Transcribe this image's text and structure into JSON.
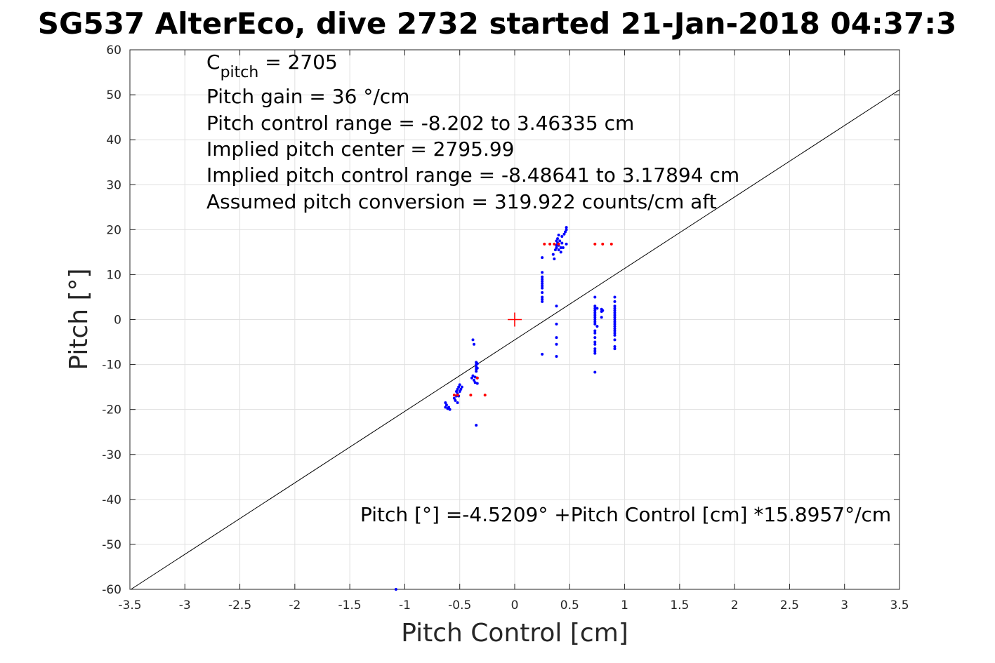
{
  "chart_data": {
    "type": "scatter",
    "title": "SG537 AlterEco, dive 2732 started 21-Jan-2018 04:37:3",
    "xlabel": "Pitch Control [cm]",
    "ylabel": "Pitch [°]",
    "xlim": [
      -3.5,
      3.5
    ],
    "ylim": [
      -60,
      60
    ],
    "xticks": [
      "-3.5",
      "-3",
      "-2.5",
      "-2",
      "-1.5",
      "-1",
      "-0.5",
      "0",
      "0.5",
      "1",
      "1.5",
      "2",
      "2.5",
      "3",
      "3.5"
    ],
    "yticks": [
      "60",
      "50",
      "40",
      "30",
      "20",
      "10",
      "0",
      "-10",
      "-20",
      "-30",
      "-40",
      "-50",
      "-60"
    ],
    "grid": true,
    "annotations": [
      {
        "main": "C",
        "sub": "pitch",
        "rest": " = 2705"
      },
      {
        "text": "Pitch gain = 36 °/cm"
      },
      {
        "text": "Pitch control range = -8.202 to 3.46335 cm"
      },
      {
        "text": "Implied pitch center = 2795.99"
      },
      {
        "text": "Implied pitch control range = -8.48641 to 3.17894 cm"
      },
      {
        "text": "Assumed pitch conversion = 319.922 counts/cm aft"
      }
    ],
    "fit_label": "Pitch [°] =-4.5209° +Pitch Control [cm] *15.8957°/cm",
    "colors": {
      "observed": "#0000ff",
      "red_points": "#ff0000",
      "fit": "#000000",
      "center": "#ff0000",
      "grid": "#e0e0e0"
    },
    "series": [
      {
        "marker": "dot",
        "color": "#0000ff",
        "points": [
          [
            -1.08,
            -60
          ],
          [
            -0.63,
            -18.5
          ],
          [
            -0.63,
            -19.5
          ],
          [
            -0.62,
            -19
          ],
          [
            -0.61,
            -19.8
          ],
          [
            -0.6,
            -19.5
          ],
          [
            -0.59,
            -20
          ],
          [
            -0.55,
            -17.5
          ],
          [
            -0.54,
            -18
          ],
          [
            -0.53,
            -16
          ],
          [
            -0.53,
            -17
          ],
          [
            -0.52,
            -15.5
          ],
          [
            -0.52,
            -16.5
          ],
          [
            -0.51,
            -17
          ],
          [
            -0.51,
            -15
          ],
          [
            -0.5,
            -14.5
          ],
          [
            -0.5,
            -16
          ],
          [
            -0.49,
            -15.5
          ],
          [
            -0.48,
            -15
          ],
          [
            -0.52,
            -18.5
          ],
          [
            -0.39,
            -13
          ],
          [
            -0.38,
            -12.5
          ],
          [
            -0.38,
            -4.5
          ],
          [
            -0.37,
            -5.5
          ],
          [
            -0.37,
            -13.5
          ],
          [
            -0.36,
            -12.8
          ],
          [
            -0.36,
            -14
          ],
          [
            -0.35,
            -9.5
          ],
          [
            -0.35,
            -10
          ],
          [
            -0.35,
            -10.5
          ],
          [
            -0.35,
            -11
          ],
          [
            -0.35,
            -11.5
          ],
          [
            -0.34,
            -9.8
          ],
          [
            -0.34,
            -10.8
          ],
          [
            -0.34,
            -13
          ],
          [
            -0.34,
            -14.2
          ],
          [
            -0.35,
            -23.5
          ],
          [
            0.25,
            13.8
          ],
          [
            0.25,
            10.5
          ],
          [
            0.25,
            9.5
          ],
          [
            0.25,
            9
          ],
          [
            0.25,
            8.5
          ],
          [
            0.25,
            8
          ],
          [
            0.25,
            7.5
          ],
          [
            0.25,
            7
          ],
          [
            0.25,
            6
          ],
          [
            0.25,
            5
          ],
          [
            0.25,
            4.5
          ],
          [
            0.25,
            4
          ],
          [
            0.25,
            -7.7
          ],
          [
            0.35,
            14.5
          ],
          [
            0.36,
            13.5
          ],
          [
            0.37,
            15.5
          ],
          [
            0.38,
            16
          ],
          [
            0.38,
            16.5
          ],
          [
            0.39,
            17
          ],
          [
            0.39,
            18
          ],
          [
            0.4,
            15.5
          ],
          [
            0.4,
            16.5
          ],
          [
            0.41,
            17.5
          ],
          [
            0.42,
            16
          ],
          [
            0.42,
            15
          ],
          [
            0.43,
            17
          ],
          [
            0.43,
            18.5
          ],
          [
            0.44,
            16
          ],
          [
            0.45,
            19
          ],
          [
            0.46,
            19.5
          ],
          [
            0.47,
            20
          ],
          [
            0.47,
            20.5
          ],
          [
            0.47,
            16.8
          ],
          [
            0.4,
            18.8
          ],
          [
            0.38,
            17.5
          ],
          [
            0.38,
            3
          ],
          [
            0.38,
            -1
          ],
          [
            0.38,
            -4
          ],
          [
            0.38,
            -5.5
          ],
          [
            0.38,
            -8.2
          ],
          [
            0.73,
            5
          ],
          [
            0.73,
            3
          ],
          [
            0.73,
            2.5
          ],
          [
            0.73,
            2
          ],
          [
            0.73,
            1.5
          ],
          [
            0.73,
            1
          ],
          [
            0.73,
            0.5
          ],
          [
            0.73,
            0
          ],
          [
            0.73,
            -0.5
          ],
          [
            0.73,
            -1
          ],
          [
            0.73,
            -2.5
          ],
          [
            0.73,
            -3
          ],
          [
            0.73,
            -4
          ],
          [
            0.73,
            -5
          ],
          [
            0.73,
            -5.5
          ],
          [
            0.73,
            -6.5
          ],
          [
            0.73,
            -7
          ],
          [
            0.73,
            -7.5
          ],
          [
            0.73,
            -11.7
          ],
          [
            0.75,
            2.5
          ],
          [
            0.75,
            -1.5
          ],
          [
            0.79,
            2.3
          ],
          [
            0.79,
            1.8
          ],
          [
            0.8,
            2
          ],
          [
            0.79,
            0.5
          ],
          [
            0.91,
            5
          ],
          [
            0.91,
            4
          ],
          [
            0.91,
            3
          ],
          [
            0.91,
            2.5
          ],
          [
            0.91,
            2
          ],
          [
            0.91,
            1.5
          ],
          [
            0.91,
            1
          ],
          [
            0.91,
            0.5
          ],
          [
            0.91,
            0
          ],
          [
            0.91,
            -0.5
          ],
          [
            0.91,
            -1
          ],
          [
            0.91,
            -1.5
          ],
          [
            0.91,
            -2
          ],
          [
            0.91,
            -2.5
          ],
          [
            0.91,
            -3
          ],
          [
            0.91,
            -3.5
          ],
          [
            0.91,
            -4.5
          ],
          [
            0.91,
            -6
          ],
          [
            0.91,
            -6.5
          ]
        ]
      },
      {
        "marker": "dot",
        "color": "#ff0000",
        "points": [
          [
            -0.55,
            -16.8
          ],
          [
            -0.52,
            -16.8
          ],
          [
            -0.4,
            -16.8
          ],
          [
            -0.27,
            -16.8
          ],
          [
            -0.34,
            -13
          ],
          [
            0.27,
            16.8
          ],
          [
            0.32,
            16.8
          ],
          [
            0.36,
            16.8
          ],
          [
            0.4,
            16.8
          ],
          [
            0.73,
            16.8
          ],
          [
            0.8,
            16.8
          ],
          [
            0.88,
            16.8
          ]
        ]
      }
    ],
    "fit_line": {
      "intercept": -4.5209,
      "slope": 15.8957,
      "x_range": [
        -3.5,
        3.5
      ]
    },
    "center_marker": {
      "x": 0,
      "y": 0,
      "marker": "plus"
    }
  }
}
